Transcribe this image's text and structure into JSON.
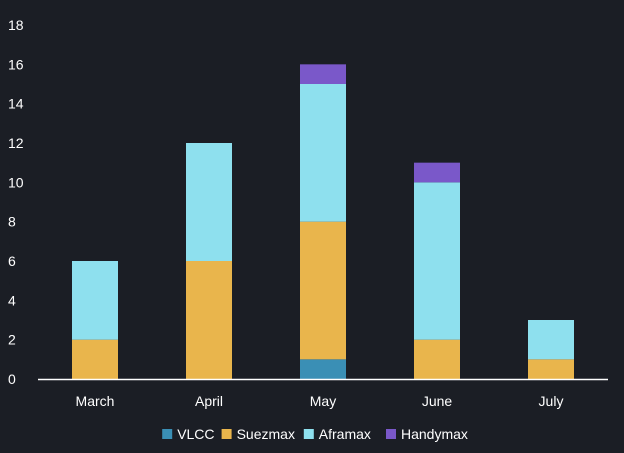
{
  "chart_data": {
    "type": "bar",
    "stacked": true,
    "categories": [
      "March",
      "April",
      "May",
      "June",
      "July"
    ],
    "series": [
      {
        "name": "VLCC",
        "color": "#3a8fb5",
        "values": [
          0,
          0,
          1,
          0,
          0
        ]
      },
      {
        "name": "Suezmax",
        "color": "#e9b54c",
        "values": [
          2,
          6,
          7,
          2,
          1
        ]
      },
      {
        "name": "Aframax",
        "color": "#8ee0ee",
        "values": [
          4,
          6,
          7,
          8,
          2
        ]
      },
      {
        "name": "Handymax",
        "color": "#7a58c9",
        "values": [
          0,
          0,
          1,
          1,
          0
        ]
      }
    ],
    "title": "",
    "xlabel": "",
    "ylabel": "",
    "ylim": [
      0,
      18
    ],
    "yticks": [
      0,
      2,
      4,
      6,
      8,
      10,
      12,
      14,
      16,
      18
    ],
    "grid": false,
    "legend_position": "bottom",
    "background": "#1b1e25",
    "axis_color": "#ffffff"
  }
}
